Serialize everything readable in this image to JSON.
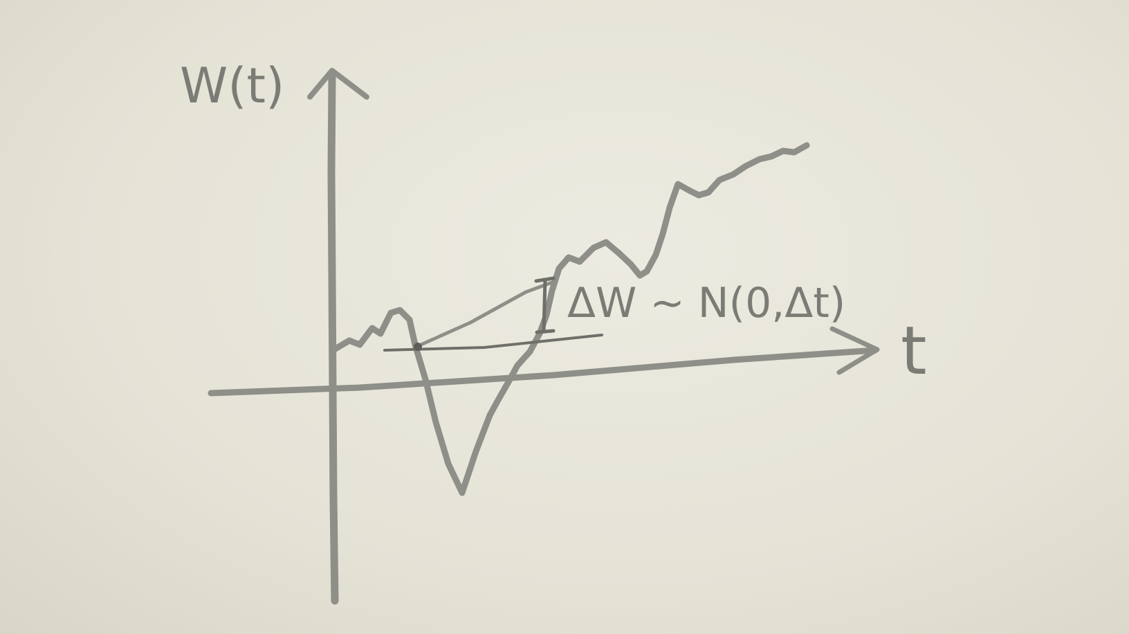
{
  "labels": {
    "y_axis": "W(t)",
    "x_axis": "t",
    "increment": "ΔW ∼ N(0,Δt)"
  },
  "colors": {
    "paper": "#e7e5d9",
    "pencil": "#8f8f89",
    "pencil_dark": "#6f6f6a"
  }
}
